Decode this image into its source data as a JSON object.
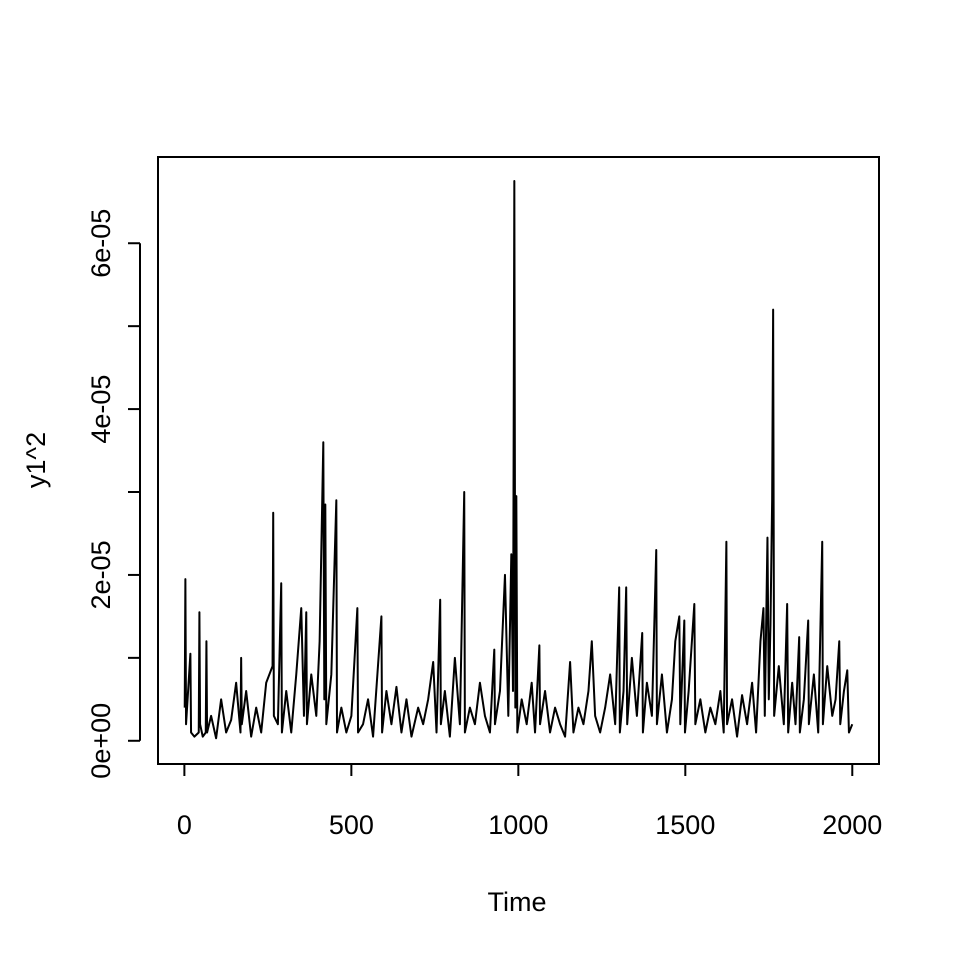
{
  "chart_data": {
    "type": "line",
    "x_label": "Time",
    "y_label": "y1^2",
    "xlim": [
      -79,
      2080
    ],
    "ylim": [
      -2.8e-06,
      7.04e-05
    ],
    "xticks": [
      0,
      500,
      1000,
      1500,
      2000
    ],
    "yticks": [
      {
        "value": 0,
        "label": "0e+00"
      },
      {
        "value": 1e-05,
        "label": null
      },
      {
        "value": 2e-05,
        "label": "2e-05"
      },
      {
        "value": 3e-05,
        "label": null
      },
      {
        "value": 4e-05,
        "label": "4e-05"
      },
      {
        "value": 5e-05,
        "label": null
      },
      {
        "value": 6e-05,
        "label": "6e-05"
      }
    ],
    "series": [
      {
        "color": "#000000",
        "x": [
          1,
          3,
          5,
          18,
          20,
          30,
          43,
          45,
          47,
          55,
          64,
          66,
          68,
          80,
          95,
          110,
          125,
          140,
          155,
          168,
          170,
          172,
          185,
          200,
          215,
          230,
          245,
          264,
          266,
          268,
          280,
          290,
          292,
          305,
          320,
          335,
          350,
          358,
          365,
          367,
          380,
          395,
          405,
          416,
          419,
          422,
          425,
          440,
          455,
          457,
          470,
          485,
          500,
          518,
          520,
          535,
          550,
          565,
          590,
          592,
          605,
          620,
          635,
          650,
          665,
          680,
          700,
          715,
          730,
          745,
          755,
          766,
          768,
          780,
          795,
          810,
          825,
          838,
          840,
          855,
          870,
          885,
          900,
          915,
          928,
          930,
          945,
          960,
          970,
          979,
          984,
          988,
          991,
          994,
          997,
          1010,
          1025,
          1040,
          1050,
          1063,
          1065,
          1080,
          1095,
          1110,
          1125,
          1140,
          1155,
          1165,
          1180,
          1195,
          1210,
          1220,
          1230,
          1245,
          1260,
          1275,
          1290,
          1302,
          1304,
          1315,
          1323,
          1326,
          1340,
          1355,
          1371,
          1373,
          1385,
          1400,
          1413,
          1415,
          1430,
          1445,
          1460,
          1470,
          1482,
          1485,
          1497,
          1499,
          1510,
          1527,
          1530,
          1545,
          1560,
          1575,
          1590,
          1605,
          1615,
          1623,
          1625,
          1640,
          1655,
          1670,
          1685,
          1700,
          1712,
          1725,
          1734,
          1738,
          1746,
          1750,
          1755,
          1760,
          1763,
          1766,
          1780,
          1795,
          1805,
          1808,
          1820,
          1830,
          1841,
          1843,
          1855,
          1868,
          1870,
          1885,
          1898,
          1910,
          1912,
          1925,
          1940,
          1950,
          1961,
          1964,
          1975,
          1985,
          1990,
          2000
        ],
        "values": [
          4e-06,
          1.95e-05,
          2e-06,
          1.05e-05,
          1e-06,
          5e-07,
          1e-06,
          1.55e-05,
          2e-06,
          5e-07,
          1e-06,
          1.2e-05,
          1e-06,
          3e-06,
          3e-07,
          5e-06,
          1e-06,
          2.5e-06,
          7e-06,
          1e-06,
          1e-05,
          2e-06,
          6e-06,
          5e-07,
          4e-06,
          1e-06,
          7e-06,
          9e-06,
          2.75e-05,
          3e-06,
          2e-06,
          1.9e-05,
          1e-06,
          6e-06,
          1e-06,
          8e-06,
          1.6e-05,
          3e-06,
          1.55e-05,
          2e-06,
          8e-06,
          3e-06,
          1.2e-05,
          3.6e-05,
          5e-06,
          2.85e-05,
          2e-06,
          8e-06,
          2.9e-05,
          1e-06,
          4e-06,
          1e-06,
          3e-06,
          1.6e-05,
          1e-06,
          2e-06,
          5e-06,
          5e-07,
          1.5e-05,
          1e-06,
          6e-06,
          2e-06,
          6.5e-06,
          1e-06,
          5e-06,
          5e-07,
          4e-06,
          2e-06,
          5e-06,
          9.5e-06,
          1e-06,
          1.7e-05,
          2e-06,
          6e-06,
          5e-07,
          1e-05,
          2e-06,
          3e-05,
          1e-06,
          4e-06,
          2e-06,
          7e-06,
          3e-06,
          1e-06,
          1.1e-05,
          2e-06,
          6e-06,
          2e-05,
          3e-06,
          2.25e-05,
          6e-06,
          6.75e-05,
          4e-06,
          2.95e-05,
          1e-06,
          5e-06,
          2e-06,
          7e-06,
          1e-06,
          1.15e-05,
          2e-06,
          6e-06,
          1e-06,
          4e-06,
          2e-06,
          5e-07,
          9.5e-06,
          1e-06,
          4e-06,
          2e-06,
          6e-06,
          1.2e-05,
          3e-06,
          1e-06,
          4e-06,
          8e-06,
          2e-06,
          1.85e-05,
          1e-06,
          6e-06,
          1.85e-05,
          2e-06,
          1e-05,
          3e-06,
          1.3e-05,
          1e-06,
          7e-06,
          3e-06,
          2.3e-05,
          2e-06,
          8e-06,
          1e-06,
          5e-06,
          1.2e-05,
          1.5e-05,
          2e-06,
          1.45e-05,
          1e-06,
          6e-06,
          1.65e-05,
          2e-06,
          5e-06,
          1e-06,
          4e-06,
          2e-06,
          6e-06,
          1e-06,
          2.4e-05,
          2e-06,
          5e-06,
          5e-07,
          5.5e-06,
          2e-06,
          7e-06,
          1e-06,
          1.2e-05,
          1.6e-05,
          3e-06,
          2.45e-05,
          5e-06,
          1.4e-05,
          2.9e-05,
          5.2e-05,
          3e-06,
          9e-06,
          2e-06,
          1.65e-05,
          1e-06,
          7e-06,
          2e-06,
          1.25e-05,
          1e-06,
          5e-06,
          1.45e-05,
          2e-06,
          8e-06,
          1e-06,
          2.4e-05,
          2e-06,
          9e-06,
          3e-06,
          5e-06,
          1.2e-05,
          2e-06,
          6e-06,
          8.5e-06,
          1e-06,
          2e-06
        ]
      }
    ]
  }
}
